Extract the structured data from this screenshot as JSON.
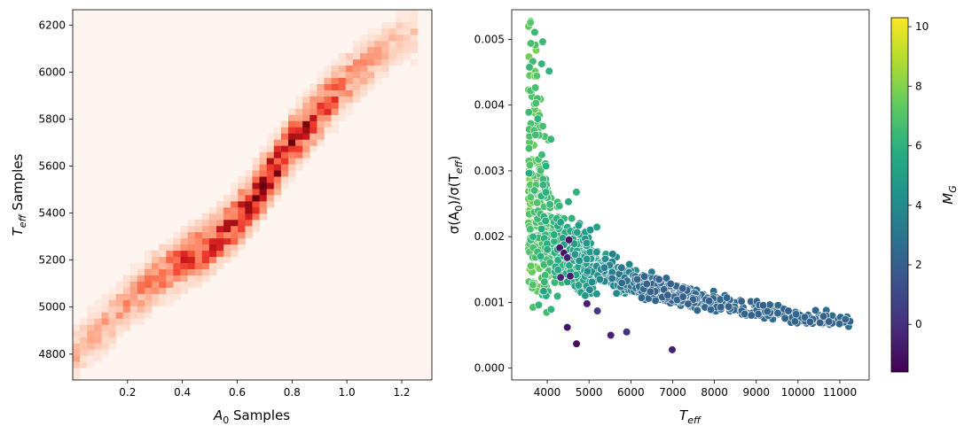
{
  "chart_data": [
    {
      "type": "heatmap",
      "xlabel_base": "A",
      "xlabel_sub": "0",
      "xlabel_rest": " Samples",
      "ylabel_base": "T",
      "ylabel_sub": "eff",
      "ylabel_rest": " Samples",
      "xlim": [
        0.0,
        1.31
      ],
      "ylim": [
        4690,
        6265
      ],
      "xticks": [
        0.2,
        0.4,
        0.6,
        0.8,
        1.0,
        1.2
      ],
      "xtick_labels": [
        "0.2",
        "0.4",
        "0.6",
        "0.8",
        "1.0",
        "1.2"
      ],
      "yticks": [
        4800,
        5000,
        5200,
        5400,
        5600,
        5800,
        6000,
        6200
      ],
      "ytick_labels": [
        "4800",
        "5000",
        "5200",
        "5400",
        "5600",
        "5800",
        "6000",
        "6200"
      ],
      "colormap": "Reds",
      "ridge": {
        "x": [
          0.0,
          0.05,
          0.1,
          0.2,
          0.3,
          0.4,
          0.5,
          0.6,
          0.7,
          0.8,
          0.9,
          1.0,
          1.1,
          1.2
        ],
        "y": [
          4790,
          4850,
          4900,
          5020,
          5120,
          5200,
          5260,
          5370,
          5530,
          5700,
          5830,
          5960,
          6060,
          6150
        ],
        "peak_density": [
          0.25,
          0.3,
          0.3,
          0.35,
          0.45,
          0.6,
          0.7,
          0.75,
          0.95,
          0.85,
          0.7,
          0.45,
          0.3,
          0.2
        ]
      }
    },
    {
      "type": "scatter",
      "xlabel_base": "T",
      "xlabel_sub": "eff",
      "ylabel_text": "σ(A",
      "ylabel_sub1": "0",
      "ylabel_mid": ")/σ(T",
      "ylabel_sub2": "eff",
      "ylabel_end": ")",
      "xlim": [
        3150,
        11700
      ],
      "ylim": [
        -0.00018,
        0.00545
      ],
      "xticks": [
        4000,
        5000,
        6000,
        7000,
        8000,
        9000,
        10000,
        11000
      ],
      "xtick_labels": [
        "4000",
        "5000",
        "6000",
        "7000",
        "8000",
        "9000",
        "10000",
        "11000"
      ],
      "yticks": [
        0.0,
        0.001,
        0.002,
        0.003,
        0.004,
        0.005
      ],
      "ytick_labels": [
        "0.000",
        "0.001",
        "0.002",
        "0.003",
        "0.004",
        "0.005"
      ],
      "trend": "sigma ≈ 7.9 × T_eff^-1.0 (approx), spread larger at low T_eff",
      "colorbar": {
        "label_base": "M",
        "label_sub": "G",
        "colormap": "viridis",
        "vmin": -1.6,
        "vmax": 10.3,
        "ticks": [
          0,
          2,
          4,
          6,
          8,
          10
        ],
        "tick_labels": [
          "0",
          "2",
          "4",
          "6",
          "8",
          "10"
        ]
      },
      "outliers": [
        {
          "x": 4700,
          "y": 0.00037,
          "c": -1.2
        },
        {
          "x": 4520,
          "y": 0.00195,
          "c": -1.0
        },
        {
          "x": 4300,
          "y": 0.00183,
          "c": -0.8
        },
        {
          "x": 4400,
          "y": 0.00175,
          "c": -0.9
        },
        {
          "x": 4480,
          "y": 0.00168,
          "c": -0.5
        },
        {
          "x": 4550,
          "y": 0.0014,
          "c": -0.7
        },
        {
          "x": 4320,
          "y": 0.00138,
          "c": -0.3
        },
        {
          "x": 4950,
          "y": 0.00098,
          "c": -0.6
        },
        {
          "x": 5520,
          "y": 0.0005,
          "c": -0.5
        },
        {
          "x": 5900,
          "y": 0.00055,
          "c": 0.2
        },
        {
          "x": 6990,
          "y": 0.00028,
          "c": -0.4
        },
        {
          "x": 5200,
          "y": 0.00087,
          "c": 0.5
        },
        {
          "x": 4480,
          "y": 0.00062,
          "c": -0.9
        }
      ]
    }
  ]
}
